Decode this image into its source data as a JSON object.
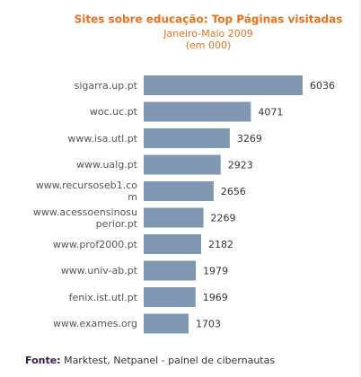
{
  "chart_data": {
    "type": "bar",
    "orientation": "horizontal",
    "title": "Sites sobre educação: Top Páginas visitadas",
    "subtitle": [
      "Janeiro-Maio 2009",
      "(em 000)"
    ],
    "categories": [
      "sigarra.up.pt",
      "woc.uc.pt",
      "www.isa.utl.pt",
      "www.ualg.pt",
      "www.recursoseb1.com",
      "www.acessoensinosuperior.pt",
      "www.prof2000.pt",
      "www.univ-ab.pt",
      "fenix.ist.utl.pt",
      "www.exames.org"
    ],
    "values": [
      6036,
      4071,
      3269,
      2923,
      2656,
      2269,
      2182,
      1979,
      1969,
      1703
    ],
    "color": "#8097b1",
    "source_label": "Fonte:",
    "source_text": "Marktest, Netpanel - painel de cibernautas"
  }
}
